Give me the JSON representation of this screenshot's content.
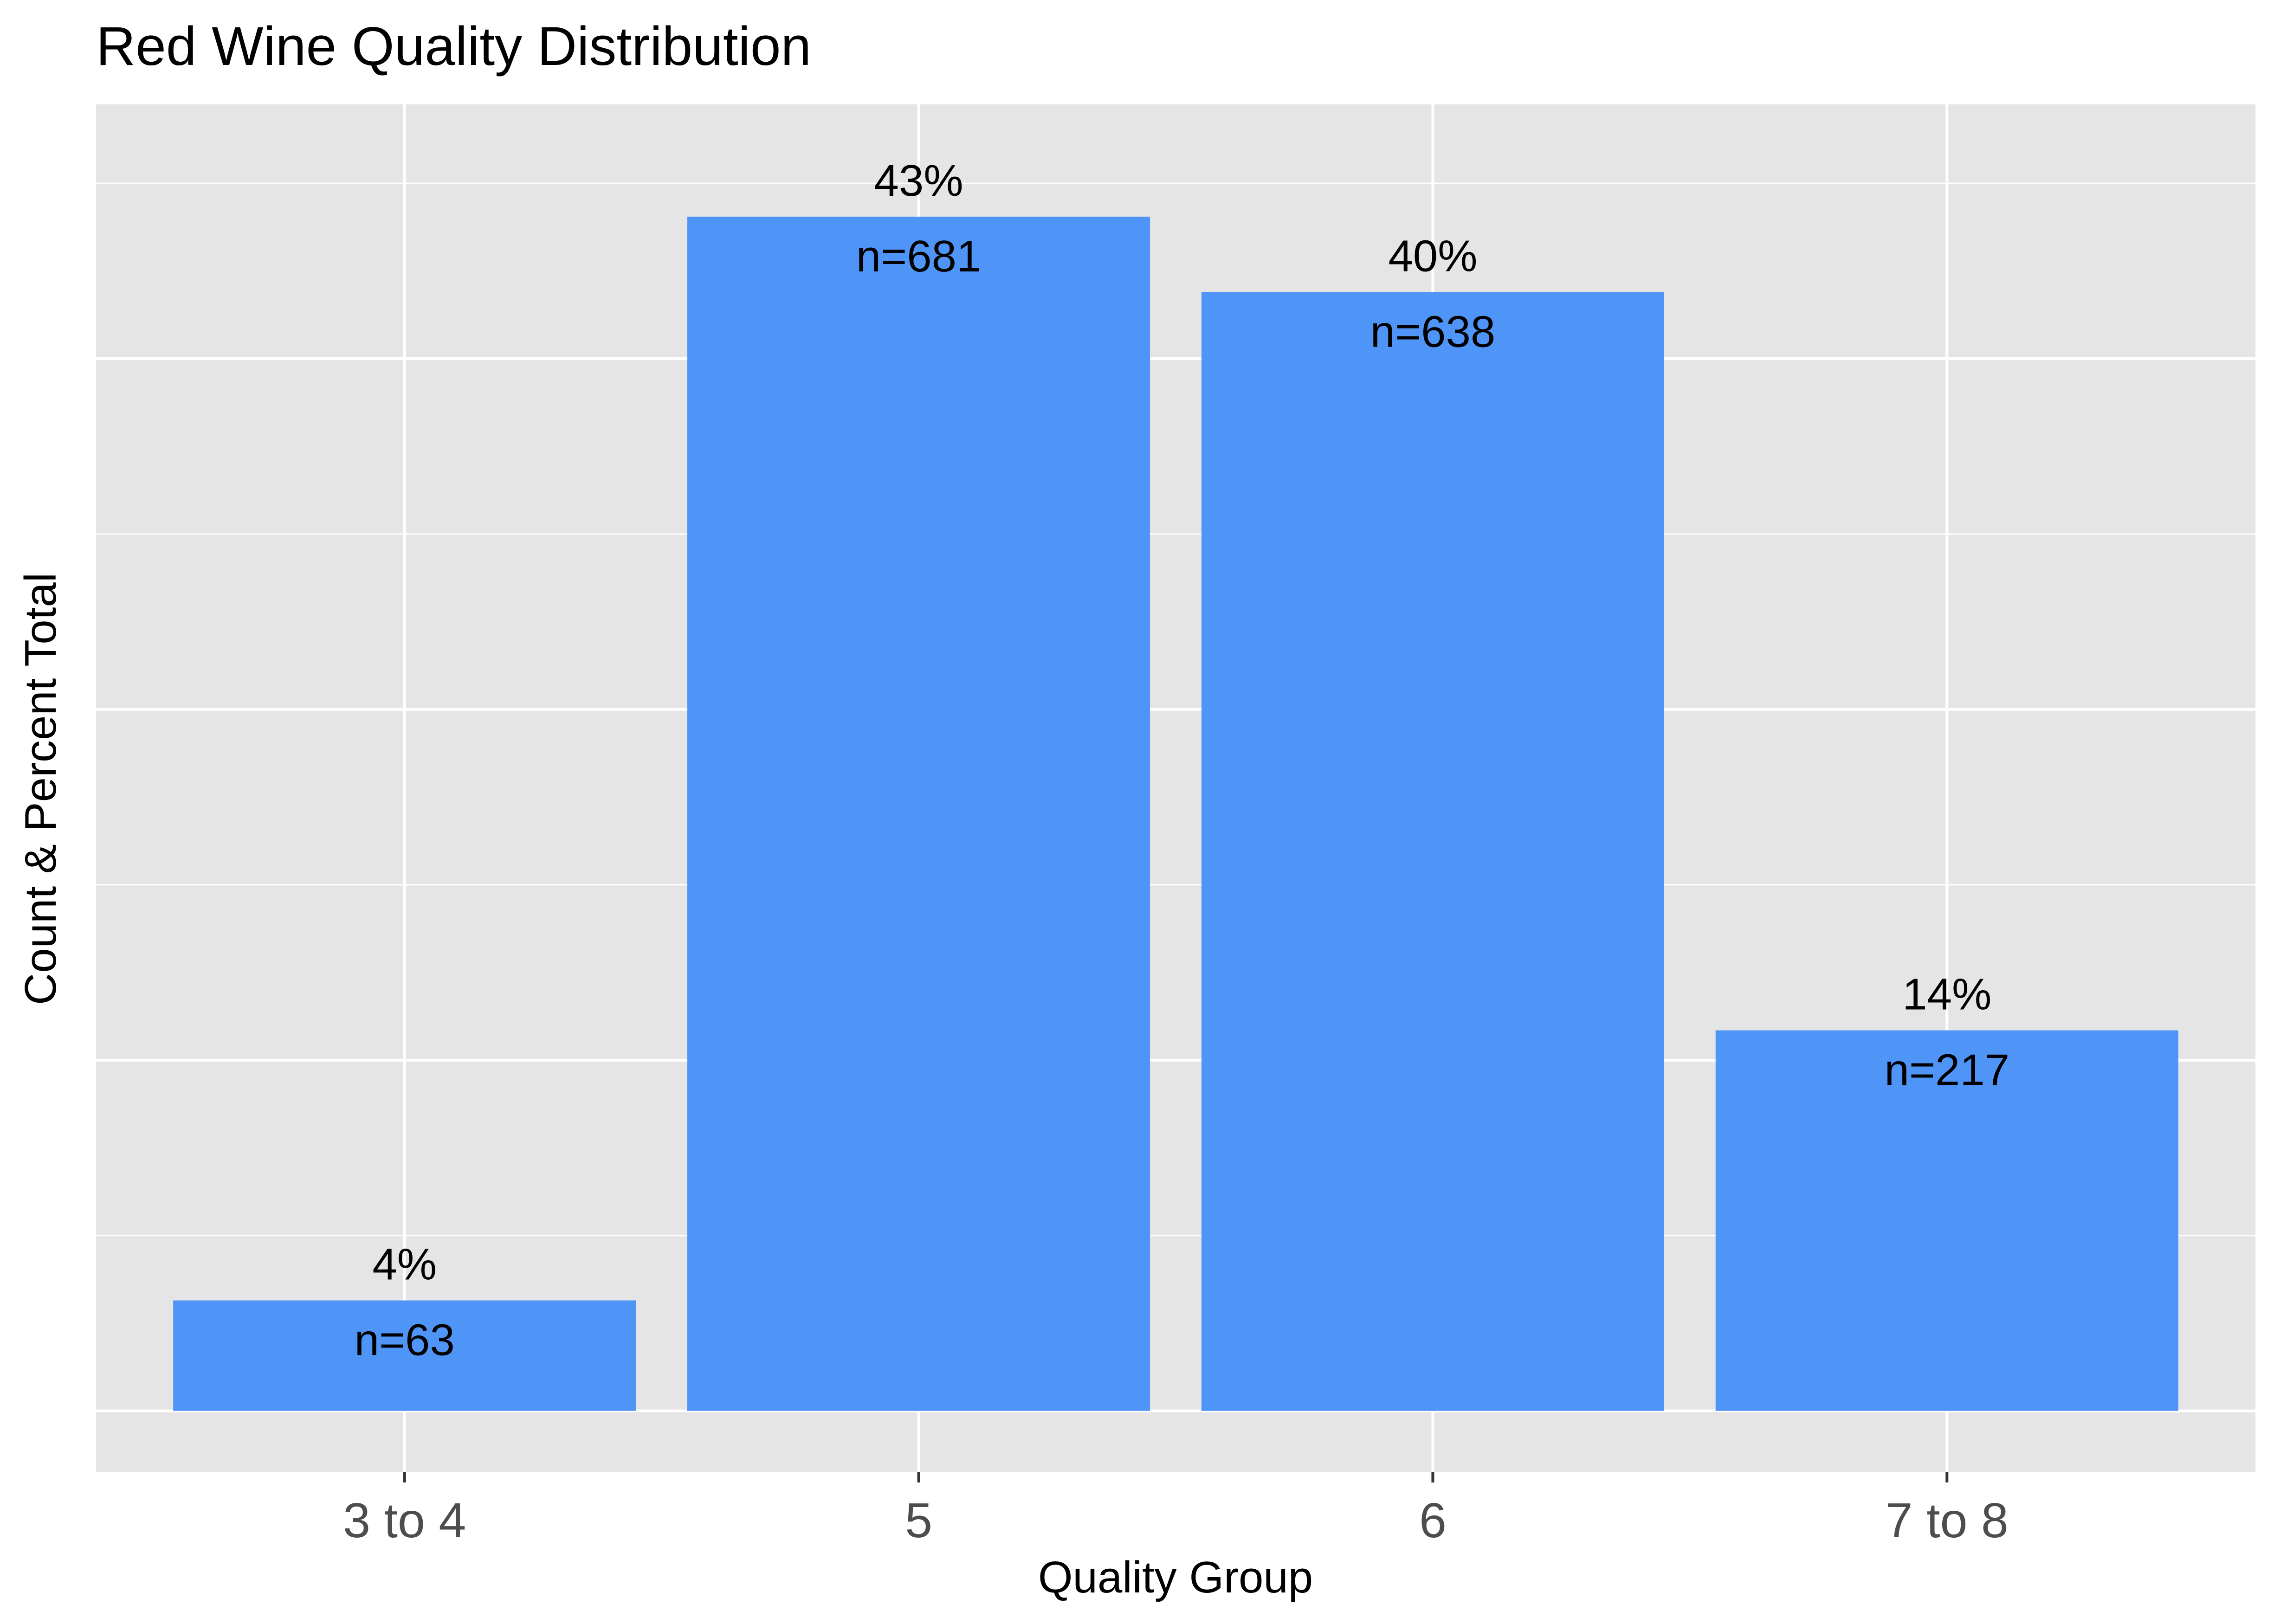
{
  "chart_data": {
    "type": "bar",
    "title": "Red Wine Quality Distribution",
    "xlabel": "Quality Group",
    "ylabel": "Count & Percent Total",
    "categories": [
      "3 to 4",
      "5",
      "6",
      "7 to 8"
    ],
    "values": [
      63,
      681,
      638,
      217
    ],
    "percent_labels": [
      "4%",
      "43%",
      "40%",
      "14%"
    ],
    "count_labels": [
      "n=63",
      "n=681",
      "n=638",
      "n=217"
    ],
    "ylim": [
      -35,
      745
    ],
    "y_gridlines": [
      0,
      200,
      400,
      600
    ],
    "y_minor_gridlines": [
      100,
      300,
      500,
      700
    ],
    "show_y_tick_labels": false,
    "grid": true,
    "colors": {
      "bar": "#4f94f7",
      "panel": "#e5e5e5",
      "grid": "#ffffff",
      "background": "#ffffff"
    }
  }
}
